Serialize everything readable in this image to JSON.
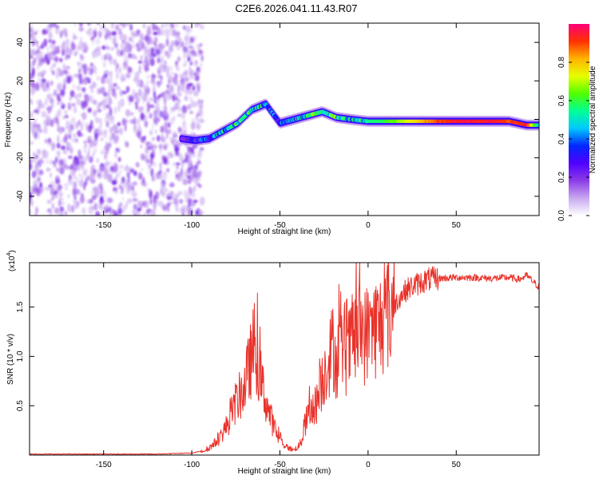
{
  "title": "C2E6.2026.041.11.43.R07",
  "chart_data": [
    {
      "type": "heatmap",
      "name": "spectrogram",
      "xlabel": "Height of straight line (km)",
      "ylabel": "Frequency (Hz)",
      "xlim": [
        -192,
        97
      ],
      "ylim": [
        -50,
        50
      ],
      "xticks": [
        -150,
        -100,
        -50,
        0,
        50
      ],
      "xtick_labels": [
        "-150",
        "-100",
        "-50",
        "0",
        "50"
      ],
      "yticks": [
        40,
        20,
        0,
        -20,
        -40
      ],
      "ytick_labels": [
        "40",
        "20",
        "0",
        "-20",
        "-40"
      ],
      "colorbar": {
        "label": "Normalized spectral amplitude",
        "range": [
          0,
          1
        ],
        "ticks": [
          0.0,
          0.2,
          0.4,
          0.6,
          0.8
        ],
        "tick_labels": [
          "0.0",
          "0.2",
          "0.4",
          "0.6",
          "0.8"
        ],
        "colors": [
          "#ffffff",
          "#c8a8f0",
          "#8c3ce6",
          "#5000ff",
          "#0028ff",
          "#00c8ff",
          "#00ff96",
          "#50ff00",
          "#e6ff00",
          "#ffb400",
          "#ff3200",
          "#ff0078"
        ]
      },
      "noise_region_x": [
        -192,
        -98
      ],
      "signal_track": [
        {
          "x": -106,
          "y": -10,
          "amp": 0.15
        },
        {
          "x": -98,
          "y": -11,
          "amp": 0.25
        },
        {
          "x": -90,
          "y": -10,
          "amp": 0.35
        },
        {
          "x": -82,
          "y": -6,
          "amp": 0.45
        },
        {
          "x": -74,
          "y": -2,
          "amp": 0.5
        },
        {
          "x": -66,
          "y": 5,
          "amp": 0.55
        },
        {
          "x": -58,
          "y": 8,
          "amp": 0.45
        },
        {
          "x": -50,
          "y": -2,
          "amp": 0.35
        },
        {
          "x": -42,
          "y": 0,
          "amp": 0.4
        },
        {
          "x": -34,
          "y": 2,
          "amp": 0.55
        },
        {
          "x": -26,
          "y": 4,
          "amp": 0.6
        },
        {
          "x": -18,
          "y": 1,
          "amp": 0.55
        },
        {
          "x": -10,
          "y": 0,
          "amp": 0.5
        },
        {
          "x": 0,
          "y": -1,
          "amp": 0.55
        },
        {
          "x": 10,
          "y": -1,
          "amp": 0.6
        },
        {
          "x": 20,
          "y": -1,
          "amp": 0.7
        },
        {
          "x": 30,
          "y": -1,
          "amp": 0.8
        },
        {
          "x": 40,
          "y": -1,
          "amp": 0.9
        },
        {
          "x": 50,
          "y": -1,
          "amp": 0.95
        },
        {
          "x": 60,
          "y": -1,
          "amp": 0.95
        },
        {
          "x": 70,
          "y": -1,
          "amp": 0.95
        },
        {
          "x": 80,
          "y": -1,
          "amp": 0.9
        },
        {
          "x": 90,
          "y": -3,
          "amp": 0.95
        },
        {
          "x": 97,
          "y": -3,
          "amp": 0.5
        }
      ]
    },
    {
      "type": "line",
      "name": "snr",
      "xlabel": "Height of straight line (km)",
      "ylabel": "SNR (10 * v/v)",
      "multiplier_label": "(x10",
      "multiplier_exp": "4",
      "multiplier_close": ")",
      "xlim": [
        -192,
        97
      ],
      "ylim": [
        0,
        1.95
      ],
      "xticks": [
        -150,
        -100,
        -50,
        0,
        50
      ],
      "xtick_labels": [
        "-150",
        "-100",
        "-50",
        "0",
        "50"
      ],
      "yticks": [
        0.5,
        1.0,
        1.5
      ],
      "ytick_labels": [
        "0.5",
        "1.0",
        "1.5"
      ],
      "color": "#e8322a",
      "series": [
        {
          "name": "SNR",
          "x": [
            -192,
            -120,
            -100,
            -92,
            -88,
            -84,
            -80,
            -76,
            -72,
            -70,
            -68,
            -66,
            -64,
            -62,
            -60,
            -58,
            -56,
            -54,
            -52,
            -50,
            -46,
            -42,
            -38,
            -36,
            -34,
            -32,
            -30,
            -28,
            -26,
            -24,
            -22,
            -20,
            -18,
            -16,
            -14,
            -12,
            -10,
            -8,
            -6,
            -4,
            -2,
            0,
            2,
            4,
            6,
            8,
            10,
            14,
            18,
            22,
            26,
            30,
            34,
            40,
            50,
            60,
            70,
            80,
            86,
            90,
            94,
            97
          ],
          "y": [
            0.01,
            0.01,
            0.02,
            0.05,
            0.1,
            0.18,
            0.3,
            0.5,
            0.62,
            0.7,
            0.85,
            1.0,
            1.15,
            0.85,
            0.7,
            0.55,
            0.42,
            0.32,
            0.22,
            0.15,
            0.08,
            0.05,
            0.12,
            0.3,
            0.4,
            0.45,
            0.5,
            0.6,
            0.75,
            0.9,
            1.0,
            1.1,
            0.95,
            1.05,
            1.1,
            1.0,
            1.1,
            1.2,
            1.2,
            1.3,
            1.2,
            1.25,
            1.3,
            1.3,
            1.3,
            1.35,
            1.4,
            1.5,
            1.6,
            1.68,
            1.72,
            1.75,
            1.78,
            1.79,
            1.8,
            1.8,
            1.79,
            1.8,
            1.78,
            1.82,
            1.75,
            1.7
          ]
        }
      ]
    }
  ]
}
